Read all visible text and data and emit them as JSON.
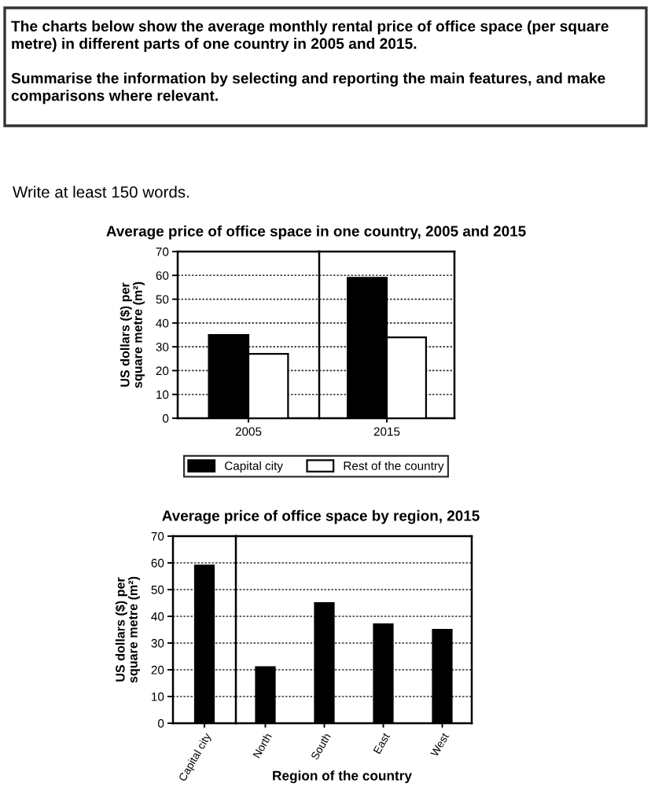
{
  "chart_data": [
    {
      "type": "other",
      "annotations": [
        "The charts below show the average monthly rental price of office space (per square metre) in different parts of one country in 2005 and 2015.",
        "Summarise the information by selecting and reporting the main features, and make comparisons where relevant.",
        "Write at least 150 words."
      ]
    },
    {
      "type": "bar",
      "title": "Average price of office space in one country, 2005 and 2015",
      "ylabel": "US dollars ($) per\nsquare metre (m²)",
      "categories": [
        "2005"
      ],
      "series": [
        {
          "name": "Capital city",
          "color": "#000000",
          "values": [
            35
          ]
        },
        {
          "name": "Rest of the country",
          "color": "#ffffff",
          "values": [
            27
          ]
        }
      ],
      "ylim": [
        0,
        70
      ],
      "yticks": [
        0,
        10,
        20,
        30,
        40,
        50,
        60,
        70
      ],
      "grid": "y",
      "legend": "bottom"
    },
    {
      "type": "bar",
      "categories": [
        "2015"
      ],
      "series": [
        {
          "color": "#000000",
          "values": [
            59
          ]
        },
        {
          "color": "#ffffff",
          "values": [
            34
          ]
        }
      ],
      "ylim": [
        0,
        70
      ],
      "yticks": [
        0,
        10,
        20,
        30,
        40,
        50,
        60,
        70
      ],
      "grid": "y",
      "tick_labels": "x"
    },
    {
      "type": "bar",
      "title": "Average price of office space by region, 2015",
      "ylabel": "US dollars ($) per\nsquare metre (m²)",
      "categories": [
        "Capital city"
      ],
      "values": [
        59
      ],
      "color": "#000000",
      "ylim": [
        0,
        70
      ],
      "yticks": [
        0,
        10,
        20,
        30,
        40,
        50,
        60,
        70
      ],
      "grid": "y"
    },
    {
      "type": "bar",
      "xlabel": "Region of the country",
      "categories": [
        "North",
        "South",
        "East",
        "West"
      ],
      "values": [
        21,
        45,
        37,
        35
      ],
      "color": "#000000",
      "ylim": [
        0,
        70
      ],
      "yticks": [
        0,
        10,
        20,
        30,
        40,
        50,
        60,
        70
      ],
      "grid": "y",
      "tick_labels": "x"
    }
  ]
}
